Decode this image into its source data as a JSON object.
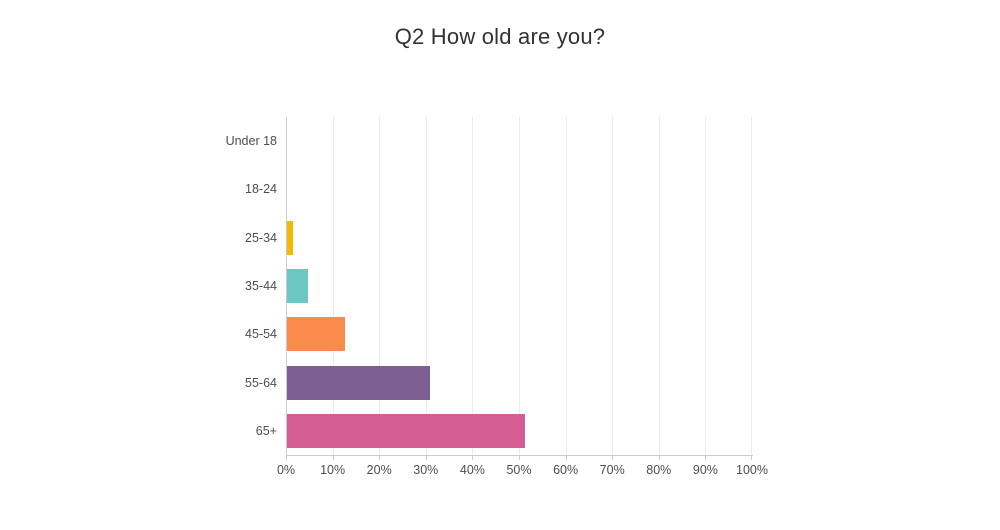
{
  "header": {
    "title": "Q2 How old are you?"
  },
  "chart_data": {
    "type": "bar",
    "orientation": "horizontal",
    "title": "Q2 How old are you?",
    "categories": [
      "Under 18",
      "18-24",
      "25-34",
      "35-44",
      "45-54",
      "55-64",
      "65+"
    ],
    "values": [
      0,
      0,
      1.2,
      4.5,
      12.4,
      30.7,
      51.1
    ],
    "value_unit": "%",
    "bar_colors": [
      "",
      "",
      "#F5B700",
      "#6BC6C4",
      "#FB8A4D",
      "#7D5F93",
      "#D45E91"
    ],
    "xlabel": "",
    "ylabel": "",
    "xlim": [
      0,
      100
    ],
    "x_tick_step": 10,
    "x_tick_labels": [
      "0%",
      "10%",
      "20%",
      "30%",
      "40%",
      "50%",
      "60%",
      "70%",
      "80%",
      "90%",
      "100%"
    ],
    "grid": "vertical-only",
    "legend": "none",
    "colors": {
      "title_text": "#333333",
      "axis_label_text": "#4A4E57",
      "gridline": "#EBECED",
      "axis_line": "#CBCED1",
      "background": "#FFFFFF"
    }
  }
}
